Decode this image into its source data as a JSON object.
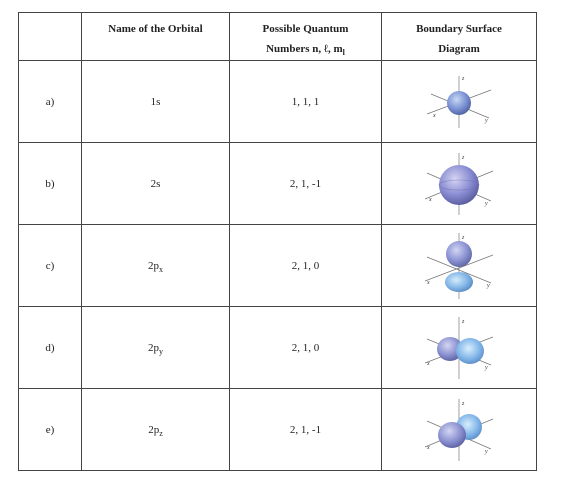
{
  "table": {
    "headers": {
      "label": "",
      "name": "Name of the Orbital",
      "quantum_line1": "Possible Quantum",
      "quantum_line2": "Numbers n, ℓ, m",
      "quantum_sub": "l",
      "diagram_line1": "Boundary Surface",
      "diagram_line2": "Diagram"
    },
    "rows": [
      {
        "label": "a)",
        "orbital": "1s",
        "orbital_sub": "",
        "numbers": "1, 1, 1",
        "diagram": "1s-sphere-small"
      },
      {
        "label": "b)",
        "orbital": "2s",
        "orbital_sub": "",
        "numbers": "2, 1, -1",
        "diagram": "2s-sphere-large"
      },
      {
        "label": "c)",
        "orbital": "2p",
        "orbital_sub": "x",
        "numbers": "2, 1, 0",
        "diagram": "dumbbell-vertical"
      },
      {
        "label": "d)",
        "orbital": "2p",
        "orbital_sub": "y",
        "numbers": "2, 1, 0",
        "diagram": "dumbbell-horizontal"
      },
      {
        "label": "e)",
        "orbital": "2p",
        "orbital_sub": "z",
        "numbers": "2, 1, -1",
        "diagram": "dumbbell-horizontal"
      }
    ],
    "axis_labels": {
      "x": "x",
      "y": "y",
      "z": "z"
    },
    "colors": {
      "lobe": "#7f95d6",
      "lobe_dark": "#5468a8",
      "lobe_alt": "#86b8e8",
      "border": "#444444"
    }
  }
}
